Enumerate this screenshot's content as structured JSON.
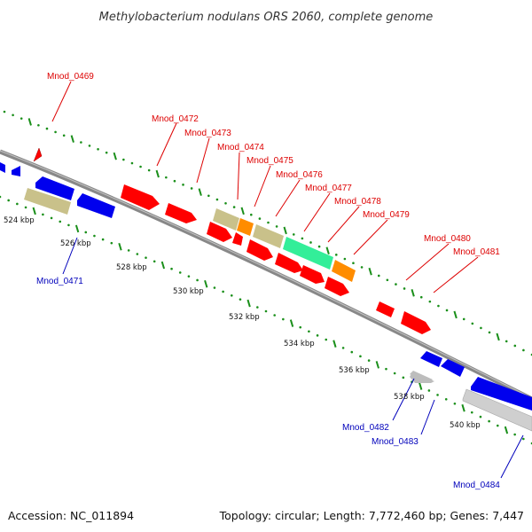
{
  "title": "Methylobacterium nodulans ORS 2060, complete genome",
  "accession": "Accession: NC_011894",
  "topology": "Topology: circular; Length: 7,772,460 bp; Genes: 7,447",
  "colors": {
    "red": "#ff0000",
    "blue": "#0000ee",
    "khaki": "#c9c18a",
    "orange": "#ff8c00",
    "aqua": "#33ee99",
    "grey": "#bdbdbd",
    "label_red": "#dd0000",
    "label_blue": "#0000bb",
    "tick_green": "#1a8f1a",
    "backbone": "#888888"
  },
  "kbp_labels": [
    "524 kbp",
    "526 kbp",
    "528 kbp",
    "530 kbp",
    "532 kbp",
    "534 kbp",
    "536 kbp",
    "538 kbp",
    "540 kbp"
  ],
  "top_labels": [
    "Mnod_0469",
    "Mnod_0472",
    "Mnod_0473",
    "Mnod_0474",
    "Mnod_0475",
    "Mnod_0476",
    "Mnod_0477",
    "Mnod_0478",
    "Mnod_0479",
    "Mnod_0480",
    "Mnod_0481"
  ],
  "bottom_labels": [
    "Mnod_0471",
    "Mnod_0482",
    "Mnod_0483",
    "Mnod_0484"
  ]
}
